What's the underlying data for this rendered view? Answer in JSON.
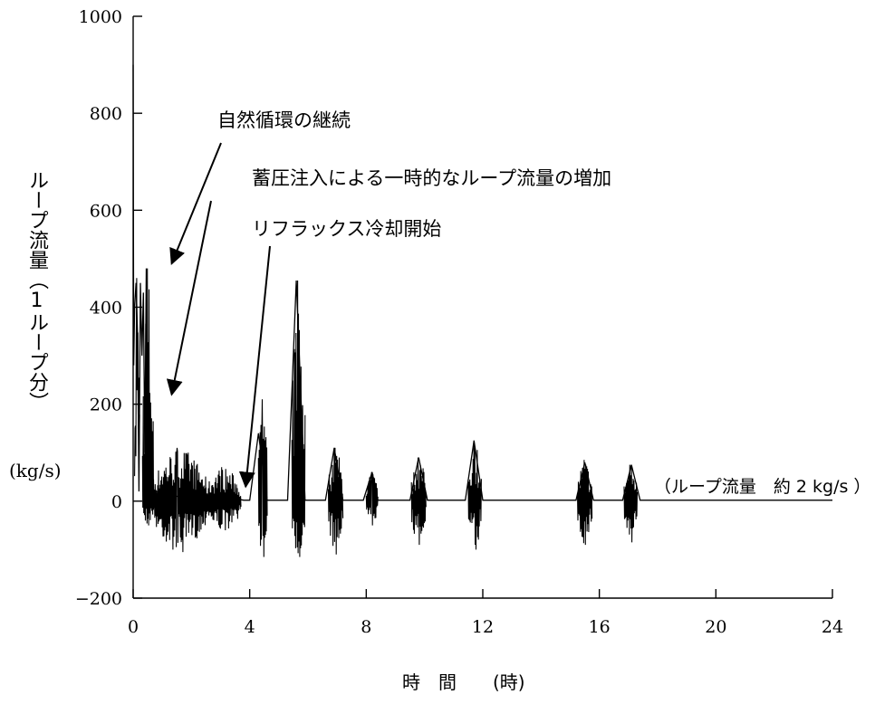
{
  "chart_data": {
    "type": "line",
    "xlabel": "時　間　　(時)",
    "ylabel": "ループ流量（1ループ分）",
    "ylabel_unit": "(kg/s)",
    "xlim": [
      0,
      24
    ],
    "ylim": [
      -200,
      1000
    ],
    "xticks": [
      0,
      4,
      8,
      12,
      16,
      20,
      24
    ],
    "yticks": [
      -200,
      0,
      200,
      400,
      600,
      800,
      1000
    ],
    "xtick_labels": [
      "0",
      "4",
      "8",
      "12",
      "16",
      "20",
      "24"
    ],
    "ytick_labels": [
      "−200",
      "0",
      "200",
      "400",
      "600",
      "800",
      "1000"
    ],
    "grid": false,
    "series": [
      {
        "x": [
          0.0,
          0.02,
          0.05,
          0.1,
          0.15,
          0.2,
          0.25,
          0.3,
          0.35,
          0.4,
          0.45,
          0.5,
          0.55,
          0.6,
          0.65,
          0.7,
          0.8,
          1.0,
          1.5,
          2.0,
          2.5,
          3.0,
          3.5,
          3.8,
          4.0,
          4.3,
          4.6,
          5.3,
          5.6,
          5.9,
          6.6,
          6.9,
          7.2,
          7.9,
          8.2,
          8.4,
          9.5,
          9.8,
          10.1,
          11.4,
          11.7,
          12.0,
          15.2,
          15.5,
          15.8,
          16.8,
          17.1,
          17.4,
          18.0,
          20.0,
          22.0,
          24.0
        ],
        "y": [
          900,
          280,
          400,
          450,
          350,
          20,
          450,
          300,
          430,
          100,
          480,
          20,
          220,
          30,
          10,
          15,
          20,
          15,
          10,
          10,
          15,
          10,
          5,
          2,
          2,
          140,
          2,
          2,
          455,
          2,
          2,
          110,
          2,
          2,
          60,
          2,
          2,
          90,
          2,
          2,
          125,
          2,
          2,
          80,
          2,
          2,
          75,
          2,
          2,
          2,
          2,
          2
        ]
      }
    ],
    "bursts": [
      {
        "t0": 0.05,
        "t1": 0.22,
        "max": 460,
        "min": 270
      },
      {
        "t0": 0.32,
        "t1": 0.7,
        "max": 480,
        "min": -50
      },
      {
        "t0": 0.7,
        "t1": 2.5,
        "max": 110,
        "min": -105
      },
      {
        "t0": 2.5,
        "t1": 3.7,
        "max": 70,
        "min": -60
      },
      {
        "t0": 4.3,
        "t1": 4.6,
        "max": 210,
        "min": -115
      },
      {
        "t0": 5.45,
        "t1": 5.9,
        "max": 455,
        "min": -115
      },
      {
        "t0": 6.7,
        "t1": 7.2,
        "max": 110,
        "min": -110
      },
      {
        "t0": 8.0,
        "t1": 8.4,
        "max": 60,
        "min": -50
      },
      {
        "t0": 9.55,
        "t1": 10.05,
        "max": 90,
        "min": -90
      },
      {
        "t0": 11.5,
        "t1": 11.95,
        "max": 125,
        "min": -100
      },
      {
        "t0": 15.25,
        "t1": 15.75,
        "max": 85,
        "min": -90
      },
      {
        "t0": 16.85,
        "t1": 17.3,
        "max": 75,
        "min": -85
      }
    ],
    "annotations": [
      {
        "text": "自然循環の継続",
        "x": 0.7,
        "y": 490
      },
      {
        "text": "蓄圧注入による一時的なループ流量の増加",
        "x": 0.7,
        "y": 220
      },
      {
        "text": "リフラックス冷却開始",
        "x": 3.8,
        "y": 30
      }
    ],
    "flow_note": "（ループ流量　約 2 kg/s ）"
  }
}
